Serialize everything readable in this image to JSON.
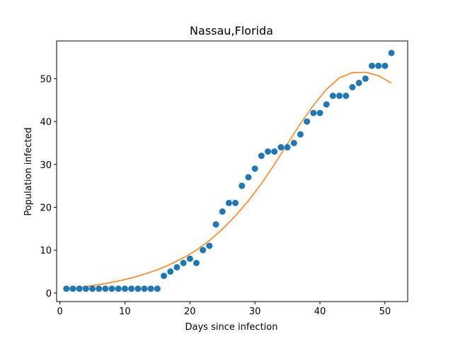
{
  "chart_data": {
    "type": "scatter",
    "title": "Nassau,Florida",
    "xlabel": "Days since infection",
    "ylabel": "Population infected",
    "xlim": [
      -0.5,
      53.5
    ],
    "ylim": [
      -2.0,
      58.8
    ],
    "xticks": [
      0,
      10,
      20,
      30,
      40,
      50
    ],
    "yticks": [
      0,
      10,
      20,
      30,
      40,
      50
    ],
    "grid": false,
    "series": [
      {
        "kind": "scatter",
        "color": "#1f77b4",
        "x": [
          1,
          2,
          3,
          4,
          5,
          6,
          7,
          8,
          9,
          10,
          11,
          12,
          13,
          14,
          15,
          16,
          17,
          18,
          19,
          20,
          21,
          22,
          23,
          24,
          25,
          26,
          27,
          28,
          29,
          30,
          31,
          32,
          33,
          34,
          35,
          36,
          37,
          38,
          39,
          40,
          41,
          42,
          43,
          44,
          45,
          46,
          47,
          48,
          49,
          50,
          51
        ],
        "y": [
          1,
          1,
          1,
          1,
          1,
          1,
          1,
          1,
          1,
          1,
          1,
          1,
          1,
          1,
          1,
          4,
          5,
          6,
          7,
          8,
          7,
          10,
          11,
          16,
          19,
          21,
          21,
          25,
          27,
          29,
          32,
          33,
          33,
          34,
          34,
          35,
          37,
          40,
          42,
          42,
          44,
          46,
          46,
          46,
          48,
          49,
          50,
          53,
          53,
          53,
          56
        ]
      },
      {
        "kind": "line",
        "color": "#ff7f0e",
        "x": [
          1,
          3,
          5,
          7,
          9,
          11,
          13,
          15,
          17,
          19,
          21,
          23,
          25,
          27,
          29,
          31,
          33,
          35,
          37,
          39,
          41,
          43,
          45,
          47,
          49,
          51
        ],
        "y": [
          1.0,
          1.3,
          1.7,
          2.2,
          2.8,
          3.5,
          4.4,
          5.4,
          6.7,
          8.2,
          10.0,
          12.2,
          14.9,
          18.0,
          21.5,
          25.5,
          30.0,
          34.8,
          39.5,
          43.8,
          47.5,
          50.2,
          51.4,
          51.5,
          50.7,
          49.0
        ]
      }
    ]
  }
}
